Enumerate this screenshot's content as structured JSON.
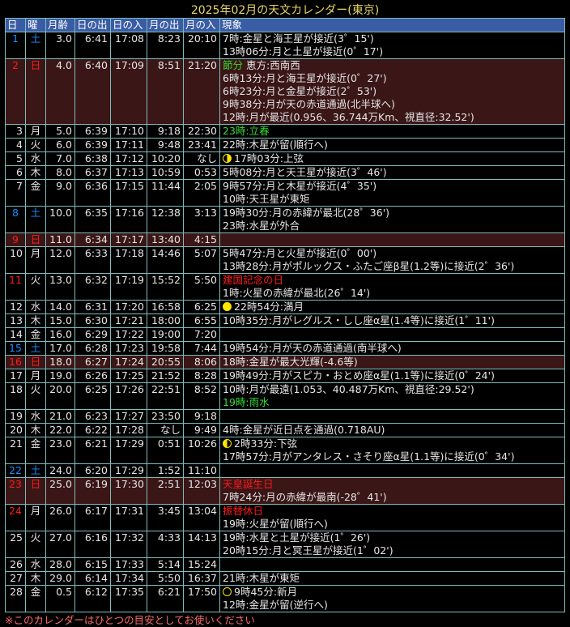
{
  "title": "2025年02月の天文カレンダー(東京)",
  "headers": [
    "日",
    "曜",
    "月齢",
    "日の出",
    "日の入",
    "月の出",
    "月の入",
    "現象"
  ],
  "colors": {
    "header_bg": "#3a5ca4",
    "border": "#7fbcbc",
    "holiday_bg": "#3a1616",
    "saturday": "#1e8cff",
    "holiday": "#ff1a1a",
    "sekki": "#33dd33",
    "title": "#e8d66a",
    "moon": "#ffe600"
  },
  "rows": [
    {
      "d": "1",
      "w": "土",
      "dc": "blue",
      "wc": "blue",
      "age": "3.0",
      "sr": "6:41",
      "ss": "17:08",
      "mr": "8:23",
      "ms": "20:10",
      "ev": [
        {
          "t": "7時:金星と海王星が接近(3゜15')"
        },
        {
          "t": "13時06分:月と土星が接近(0゜17')"
        }
      ]
    },
    {
      "d": "2",
      "w": "日",
      "dc": "red",
      "wc": "red",
      "hol": true,
      "age": "4.0",
      "sr": "6:40",
      "ss": "17:09",
      "mr": "8:51",
      "ms": "21:20",
      "ev": [
        {
          "t": "節分",
          "c": "green",
          "t2": " 恵方:西南西"
        },
        {
          "t": "6時13分:月と海王星が接近(0゜27')"
        },
        {
          "t": "6時23分:月と金星が接近(2゜53')"
        },
        {
          "t": "9時38分:月が天の赤道通過(北半球へ)"
        },
        {
          "t": "12時:月が最近(0.956、36.744万Km、視直径:32.52')"
        }
      ]
    },
    {
      "d": "3",
      "w": "月",
      "age": "5.0",
      "sr": "6:39",
      "ss": "17:10",
      "mr": "9:18",
      "ms": "22:30",
      "ev": [
        {
          "t": "23時:立春",
          "c": "green"
        }
      ]
    },
    {
      "d": "4",
      "w": "火",
      "age": "6.0",
      "sr": "6:39",
      "ss": "17:11",
      "mr": "9:48",
      "ms": "23:41",
      "ev": [
        {
          "t": "22時:木星が留(順行へ)"
        }
      ]
    },
    {
      "d": "5",
      "w": "水",
      "age": "7.0",
      "sr": "6:38",
      "ss": "17:12",
      "mr": "10:20",
      "ms": "なし",
      "ev": [
        {
          "t": "17時03分:上弦",
          "icon": "first"
        }
      ]
    },
    {
      "d": "6",
      "w": "木",
      "age": "8.0",
      "sr": "6:37",
      "ss": "17:13",
      "mr": "10:59",
      "ms": "0:53",
      "ev": [
        {
          "t": "5時08分:月と天王星が接近(3゜46')"
        }
      ]
    },
    {
      "d": "7",
      "w": "金",
      "age": "9.0",
      "sr": "6:36",
      "ss": "17:15",
      "mr": "11:44",
      "ms": "2:05",
      "ev": [
        {
          "t": "9時57分:月と木星が接近(4゜35')"
        },
        {
          "t": "10時:天王星が東矩"
        }
      ]
    },
    {
      "d": "8",
      "w": "土",
      "dc": "blue",
      "wc": "blue",
      "age": "10.0",
      "sr": "6:35",
      "ss": "17:16",
      "mr": "12:38",
      "ms": "3:13",
      "ev": [
        {
          "t": "19時30分:月の赤緯が最北(28゜36')"
        },
        {
          "t": "23時:水星が外合"
        }
      ]
    },
    {
      "d": "9",
      "w": "日",
      "dc": "red",
      "wc": "red",
      "hol": true,
      "age": "11.0",
      "sr": "6:34",
      "ss": "17:17",
      "mr": "13:40",
      "ms": "4:15",
      "ev": []
    },
    {
      "d": "10",
      "w": "月",
      "age": "12.0",
      "sr": "6:33",
      "ss": "17:18",
      "mr": "14:46",
      "ms": "5:07",
      "ev": [
        {
          "t": "5時47分:月と火星が接近(0゜00')"
        },
        {
          "t": "13時28分:月がポルックス・ふたご座β星(1.2等)に接近(2゜36')"
        }
      ]
    },
    {
      "d": "11",
      "w": "火",
      "dc": "red",
      "age": "13.0",
      "sr": "6:32",
      "ss": "17:19",
      "mr": "15:52",
      "ms": "5:50",
      "ev": [
        {
          "t": "建国記念の日",
          "c": "red"
        },
        {
          "t": "1時:火星の赤緯が最北(26゜14')"
        }
      ]
    },
    {
      "d": "12",
      "w": "水",
      "age": "14.0",
      "sr": "6:31",
      "ss": "17:20",
      "mr": "16:58",
      "ms": "6:25",
      "ev": [
        {
          "t": "22時54分:満月",
          "icon": "full"
        }
      ]
    },
    {
      "d": "13",
      "w": "木",
      "age": "15.0",
      "sr": "6:30",
      "ss": "17:21",
      "mr": "18:00",
      "ms": "6:55",
      "ev": [
        {
          "t": "10時35分:月がレグルス・しし座α星(1.4等)に接近(1゜11')"
        }
      ]
    },
    {
      "d": "14",
      "w": "金",
      "age": "16.0",
      "sr": "6:29",
      "ss": "17:22",
      "mr": "19:00",
      "ms": "7:20",
      "ev": []
    },
    {
      "d": "15",
      "w": "土",
      "dc": "blue",
      "wc": "blue",
      "age": "17.0",
      "sr": "6:28",
      "ss": "17:23",
      "mr": "19:58",
      "ms": "7:44",
      "ev": [
        {
          "t": "19時54分:月が天の赤道通過(南半球へ)"
        }
      ]
    },
    {
      "d": "16",
      "w": "日",
      "dc": "red",
      "wc": "red",
      "hol": true,
      "age": "18.0",
      "sr": "6:27",
      "ss": "17:24",
      "mr": "20:55",
      "ms": "8:06",
      "ev": [
        {
          "t": "18時:金星が最大光輝(-4.6等)"
        }
      ]
    },
    {
      "d": "17",
      "w": "月",
      "age": "19.0",
      "sr": "6:26",
      "ss": "17:25",
      "mr": "21:52",
      "ms": "8:28",
      "ev": [
        {
          "t": "19時49分:月がスピカ・おとめ座α星(1.1等)に接近(0゜24')"
        }
      ]
    },
    {
      "d": "18",
      "w": "火",
      "age": "20.0",
      "sr": "6:25",
      "ss": "17:26",
      "mr": "22:51",
      "ms": "8:52",
      "ev": [
        {
          "t": "10時:月が最遠(1.053、40.487万Km、視直径:29.52')"
        },
        {
          "t": "19時:雨水",
          "c": "green"
        }
      ]
    },
    {
      "d": "19",
      "w": "水",
      "age": "21.0",
      "sr": "6:23",
      "ss": "17:27",
      "mr": "23:50",
      "ms": "9:18",
      "ev": []
    },
    {
      "d": "20",
      "w": "木",
      "age": "22.0",
      "sr": "6:22",
      "ss": "17:28",
      "mr": "なし",
      "ms": "9:49",
      "ev": [
        {
          "t": "4時:金星が近日点を通過(0.718AU)"
        }
      ]
    },
    {
      "d": "21",
      "w": "金",
      "age": "23.0",
      "sr": "6:21",
      "ss": "17:29",
      "mr": "0:51",
      "ms": "10:26",
      "ev": [
        {
          "t": "2時33分:下弦",
          "icon": "last"
        },
        {
          "t": "17時57分:月がアンタレス・さそり座α星(1.1等)に接近(0゜34')"
        }
      ]
    },
    {
      "d": "22",
      "w": "土",
      "dc": "blue",
      "wc": "blue",
      "age": "24.0",
      "sr": "6:20",
      "ss": "17:29",
      "mr": "1:52",
      "ms": "11:10",
      "ev": []
    },
    {
      "d": "23",
      "w": "日",
      "dc": "red",
      "wc": "red",
      "hol": true,
      "age": "25.0",
      "sr": "6:19",
      "ss": "17:30",
      "mr": "2:51",
      "ms": "12:03",
      "ev": [
        {
          "t": "天皇誕生日",
          "c": "red"
        },
        {
          "t": "7時24分:月の赤緯が最南(-28゜41')"
        }
      ]
    },
    {
      "d": "24",
      "w": "月",
      "dc": "red",
      "age": "26.0",
      "sr": "6:17",
      "ss": "17:31",
      "mr": "3:45",
      "ms": "13:04",
      "ev": [
        {
          "t": "振替休日",
          "c": "red"
        },
        {
          "t": "19時:火星が留(順行へ)"
        }
      ]
    },
    {
      "d": "25",
      "w": "火",
      "age": "27.0",
      "sr": "6:16",
      "ss": "17:32",
      "mr": "4:33",
      "ms": "14:13",
      "ev": [
        {
          "t": "19時:水星と土星が接近(1゜26')"
        },
        {
          "t": "20時15分:月と冥王星が接近(1゜02')"
        }
      ]
    },
    {
      "d": "26",
      "w": "水",
      "age": "28.0",
      "sr": "6:15",
      "ss": "17:33",
      "mr": "5:14",
      "ms": "15:24",
      "ev": []
    },
    {
      "d": "27",
      "w": "木",
      "age": "29.0",
      "sr": "6:14",
      "ss": "17:34",
      "mr": "5:50",
      "ms": "16:37",
      "ev": [
        {
          "t": "21時:木星が東矩"
        }
      ]
    },
    {
      "d": "28",
      "w": "金",
      "age": "0.5",
      "sr": "6:12",
      "ss": "17:35",
      "mr": "6:21",
      "ms": "17:50",
      "ev": [
        {
          "t": "9時45分:新月",
          "icon": "new"
        },
        {
          "t": "12時:金星が留(逆行へ)"
        }
      ]
    }
  ],
  "footer": "※このカレンダーはひとつの目安としてお使いください"
}
